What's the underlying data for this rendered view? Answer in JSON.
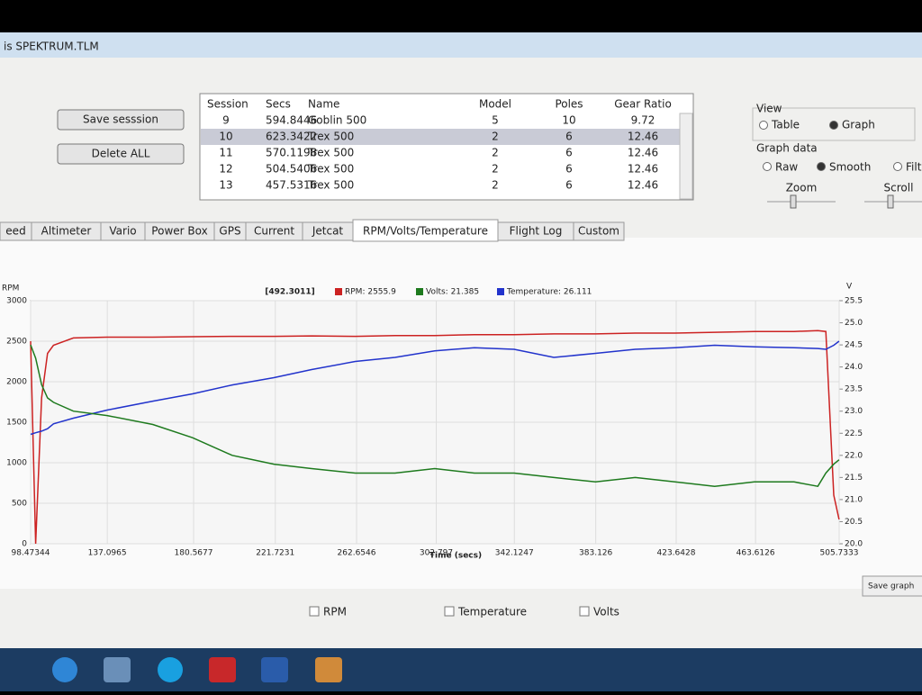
{
  "window": {
    "title": "is SPEKTRUM.TLM"
  },
  "buttons": [
    "Save sesssion",
    "Delete ALL"
  ],
  "table": {
    "columns": [
      "Session",
      "Secs",
      "Name",
      "Model",
      "Poles",
      "Gear Ratio"
    ],
    "rows": [
      [
        "9",
        "594.8446",
        "Goblin 500",
        "5",
        "10",
        "9.72"
      ],
      [
        "10",
        "623.3422",
        "Trex 500",
        "2",
        "6",
        "12.46"
      ],
      [
        "11",
        "570.1198",
        "Trex 500",
        "2",
        "6",
        "12.46"
      ],
      [
        "12",
        "504.5406",
        "Trex 500",
        "2",
        "6",
        "12.46"
      ],
      [
        "13",
        "457.5316",
        "Trex 500",
        "2",
        "6",
        "12.46"
      ]
    ],
    "selected": 1
  },
  "view": {
    "title": "View",
    "options": [
      "Table",
      "Graph"
    ],
    "selected": 1
  },
  "graph_data": {
    "title": "Graph data",
    "options": [
      "Raw",
      "Smooth",
      "Filter"
    ],
    "selected": 1,
    "sliders": [
      "Zoom",
      "Scroll"
    ]
  },
  "tabs": {
    "items": [
      "eed",
      "Altimeter",
      "Vario",
      "Power Box",
      "GPS",
      "Current",
      "Jetcat",
      "RPM/Volts/Temperature",
      "Flight Log",
      "Custom"
    ],
    "active": 7
  },
  "save_graph": "Save graph",
  "chart_data": {
    "type": "line",
    "cursor_label": "[492.3011]",
    "legend": [
      "RPM: 2555.9",
      "Volts: 21.385",
      "Temperature: 26.111"
    ],
    "ylabel": "RPM",
    "y2label": "V",
    "xlabel": "Time (secs)",
    "x": [
      98.47,
      101,
      104,
      107,
      110,
      120,
      137,
      160,
      180,
      200,
      221,
      240,
      262,
      282,
      302,
      322,
      342,
      362,
      383,
      403,
      423,
      443,
      463,
      483,
      495,
      499,
      503,
      505.7
    ],
    "xlim": [
      98.47344,
      505.7333
    ],
    "xticks": [
      98.47344,
      137.0965,
      180.5677,
      221.7231,
      262.6546,
      302.797,
      342.1247,
      383.126,
      423.6428,
      463.6126,
      505.7333
    ],
    "ylim": [
      0,
      3000
    ],
    "yticks": [
      0,
      500,
      1000,
      1500,
      2000,
      2500,
      3000
    ],
    "y2lim": [
      20,
      25.5
    ],
    "y2ticks": [
      {
        "value": 20,
        "label": "20.0"
      },
      {
        "value": 20.5,
        "label": "20.5"
      },
      {
        "value": 21,
        "label": "21.0"
      },
      {
        "value": 21.5,
        "label": "21.5"
      },
      {
        "value": 22,
        "label": "22.0"
      },
      {
        "value": 22.5,
        "label": "22.5"
      },
      {
        "value": 23,
        "label": "23.0"
      },
      {
        "value": 23.5,
        "label": "23.5"
      },
      {
        "value": 24,
        "label": "24.0"
      },
      {
        "value": 24.5,
        "label": "24.5"
      },
      {
        "value": 25,
        "label": "25.0"
      },
      {
        "value": 25.5,
        "label": "25.5"
      }
    ],
    "grid": true,
    "series": [
      {
        "name": "RPM",
        "color": "#cc2222",
        "values": [
          2500,
          0,
          1800,
          2350,
          2450,
          2540,
          2550,
          2550,
          2555,
          2560,
          2560,
          2565,
          2560,
          2570,
          2570,
          2580,
          2580,
          2590,
          2590,
          2600,
          2600,
          2610,
          2620,
          2620,
          2630,
          2620,
          600,
          300
        ]
      },
      {
        "name": "Temperature",
        "color": "#2233cc",
        "values": [
          1350,
          1370,
          1390,
          1420,
          1480,
          1550,
          1650,
          1760,
          1850,
          1960,
          2050,
          2150,
          2250,
          2300,
          2380,
          2420,
          2400,
          2300,
          2350,
          2400,
          2420,
          2450,
          2430,
          2420,
          2410,
          2400,
          2450,
          2500
        ]
      },
      {
        "name": "Volts",
        "color": "#1e7a1e",
        "axis": "y2",
        "values": [
          24.5,
          24.2,
          23.6,
          23.3,
          23.2,
          23.0,
          22.9,
          22.7,
          22.4,
          22.0,
          21.8,
          21.7,
          21.6,
          21.6,
          21.7,
          21.6,
          21.6,
          21.5,
          21.4,
          21.5,
          21.4,
          21.3,
          21.4,
          21.4,
          21.3,
          21.6,
          21.8,
          21.9
        ]
      }
    ]
  }
}
